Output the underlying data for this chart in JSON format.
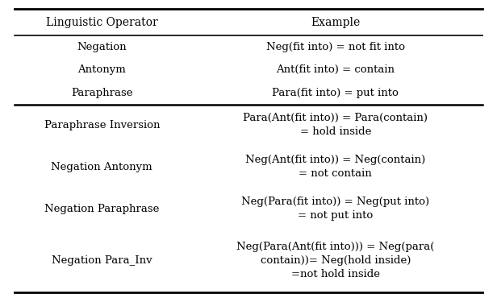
{
  "header": [
    "Linguistic Operator",
    "Example"
  ],
  "simple_rows": [
    [
      "Negation",
      "Neg(fit into) = not fit into"
    ],
    [
      "Antonym",
      "Ant(fit into) = contain"
    ],
    [
      "Paraphrase",
      "Para(fit into) = put into"
    ]
  ],
  "complex_rows": [
    {
      "left": "Paraphrase Inversion",
      "right": "Para(Ant(fit into)) = Para(contain)\n= hold inside"
    },
    {
      "left": "Negation Antonym",
      "right": "Neg(Ant(fit into)) = Neg(contain)\n= not contain"
    },
    {
      "left": "Negation Paraphrase",
      "right": "Neg(Para(fit into)) = Neg(put into)\n= not put into"
    },
    {
      "left": "Negation Para_Inv",
      "right": "Neg(Para(Ant(fit into))) = Neg(para(\ncontain))= Neg(hold inside)\n=not hold inside"
    }
  ],
  "bg_color": "#ffffff",
  "text_color": "#000000",
  "line_color": "#000000",
  "header_fontsize": 10,
  "body_fontsize": 9.5,
  "fig_width": 6.16,
  "fig_height": 3.7
}
